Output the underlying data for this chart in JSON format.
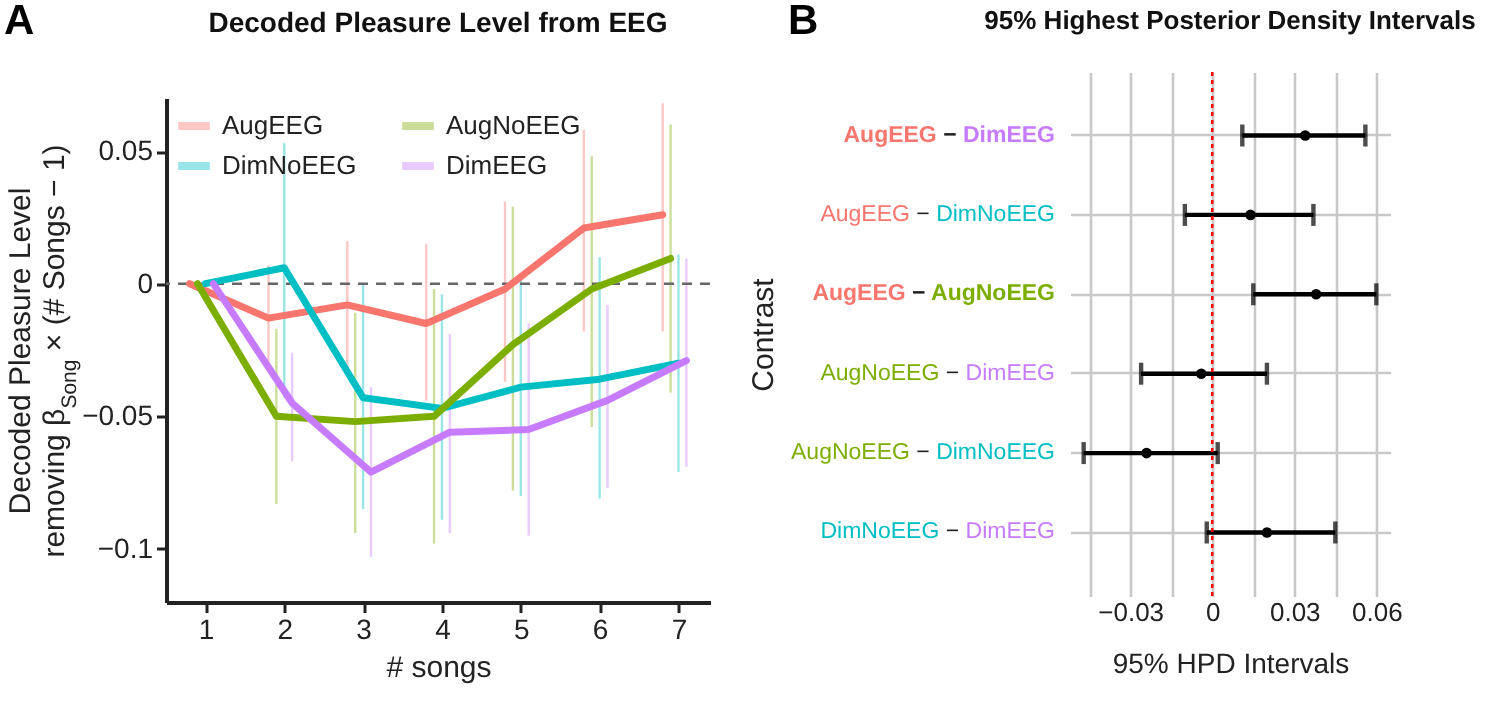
{
  "chart_data": [
    {
      "type": "line",
      "title": "Decoded Pleasure Level from EEG",
      "xlabel": "# songs",
      "ylabel": "Decoded Pleasure Level\nremoving β$_{Song}$ × (# Songs − 1)",
      "annotations": [
        "A"
      ],
      "xlim": [
        0.5,
        7.4
      ],
      "xticks": [
        1,
        2,
        3,
        4,
        5,
        6,
        7
      ],
      "ylim": [
        -0.12,
        0.07
      ],
      "yticks": [
        -0.1,
        -0.05,
        0,
        0.05
      ],
      "legend": "top left",
      "ref_lines": [
        {
          "axis": "y",
          "value": 0,
          "line_style": "dashed",
          "color": "#666666"
        }
      ],
      "series": [
        {
          "name": "AugEEG",
          "color": "#f8766d",
          "x": [
            0.8,
            1.8,
            2.8,
            3.8,
            4.8,
            5.8,
            6.8
          ],
          "values": [
            0,
            -0.013,
            -0.008,
            -0.015,
            -0.002,
            0.021,
            0.026
          ],
          "errors": [
            null,
            [
              -0.033,
              0.007
            ],
            [
              -0.035,
              0.016
            ],
            [
              -0.044,
              0.015
            ],
            [
              -0.037,
              0.031
            ],
            [
              -0.018,
              0.058
            ],
            [
              -0.018,
              0.068
            ]
          ]
        },
        {
          "name": "DimNoEEG",
          "color": "#00bfc4",
          "x": [
            1,
            2,
            3,
            4,
            5,
            6,
            7
          ],
          "values": [
            0,
            0.006,
            -0.043,
            -0.047,
            -0.039,
            -0.036,
            -0.03
          ],
          "errors": [
            null,
            [
              -0.043,
              0.053
            ],
            [
              -0.085,
              0
            ],
            [
              -0.089,
              -0.004
            ],
            [
              -0.08,
              0.004
            ],
            [
              -0.081,
              0.01
            ],
            [
              -0.071,
              0.011
            ]
          ]
        },
        {
          "name": "AugNoEEG",
          "color": "#7cae00",
          "x": [
            0.9,
            1.9,
            2.9,
            3.9,
            4.9,
            5.9,
            6.9
          ],
          "values": [
            0,
            -0.05,
            -0.052,
            -0.05,
            -0.023,
            -0.002,
            0.0095
          ],
          "errors": [
            null,
            [
              -0.083,
              -0.017
            ],
            [
              -0.094,
              -0.011
            ],
            [
              -0.098,
              -0.002
            ],
            [
              -0.078,
              0.029
            ],
            [
              -0.054,
              0.048
            ],
            [
              -0.041,
              0.06
            ]
          ]
        },
        {
          "name": "DimEEG",
          "color": "#c77cff",
          "x": [
            1.1,
            2.1,
            3.1,
            4.1,
            5.1,
            6.1,
            7.1
          ],
          "values": [
            0,
            -0.045,
            -0.071,
            -0.056,
            -0.055,
            -0.044,
            -0.029
          ],
          "errors": [
            null,
            [
              -0.067,
              -0.026
            ],
            [
              -0.103,
              -0.039
            ],
            [
              -0.094,
              -0.019
            ],
            [
              -0.095,
              -0.015
            ],
            [
              -0.077,
              -0.008
            ],
            [
              -0.069,
              0.0095
            ]
          ]
        }
      ]
    },
    {
      "type": "scatter",
      "orientation": "horizontal",
      "title": "95% Highest Posterior Density Intervals",
      "xlabel": "95% HPD Intervals",
      "ylabel": "Contrast",
      "annotations": [
        "B"
      ],
      "categories": [
        "AugEEG − DimEEG",
        "AugEEG − DimNoEEG",
        "AugEEG − AugNoEEG",
        "AugNoEEG − DimEEG",
        "AugNoEEG − DimNoEEG",
        "DimNoEEG − DimEEG"
      ],
      "xlim": [
        -0.052,
        0.065
      ],
      "xticks": [
        {
          "value": -0.045,
          "label": null
        },
        -0.03,
        {
          "value": -0.015,
          "label": null
        },
        0,
        {
          "value": 0.015,
          "label": null
        },
        0.03,
        {
          "value": 0.045,
          "label": null
        },
        0.06
      ],
      "grid": true,
      "ref_lines": [
        {
          "axis": "x",
          "value": 0,
          "line_style": "dotted",
          "color": "#ff0000"
        }
      ],
      "series": [
        {
          "color": "#000000",
          "values": [
            0.034,
            0.014,
            0.038,
            -0.004,
            -0.024,
            0.02
          ],
          "errors": [
            [
              0.011,
              0.056
            ],
            [
              -0.01,
              0.037
            ],
            [
              0.015,
              0.06
            ],
            [
              -0.026,
              0.02
            ],
            [
              -0.047,
              0.002
            ],
            [
              -0.002,
              0.045
            ]
          ]
        }
      ]
    }
  ]
}
